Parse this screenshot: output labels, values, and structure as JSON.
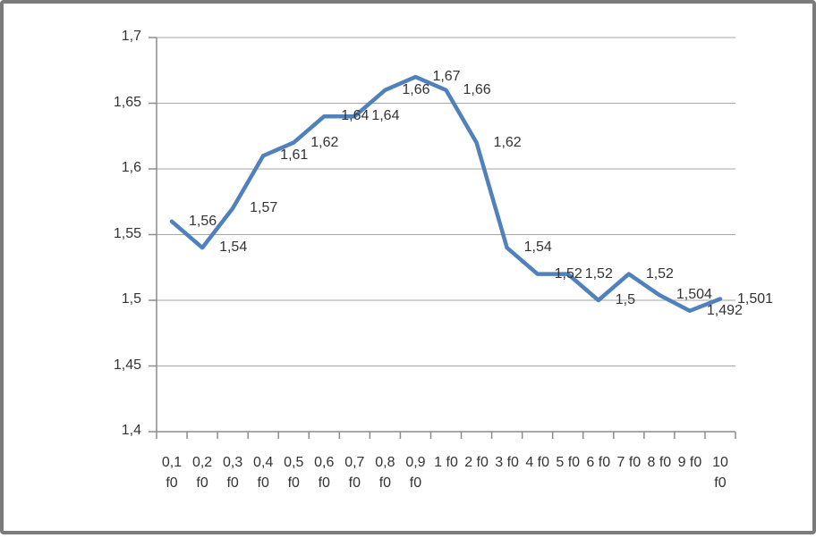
{
  "window": {
    "background": "#ffffff",
    "border_color": "#7b7b7b"
  },
  "chart_data": {
    "type": "line",
    "title": "",
    "xlabel": "",
    "ylabel": "",
    "legend": "none",
    "grid": true,
    "decimal_separator": ",",
    "categories": [
      "0,1 f0",
      "0,2 f0",
      "0,3 f0",
      "0,4 f0",
      "0,5 f0",
      "0,6 f0",
      "0,7 f0",
      "0,8 f0",
      "0,9 f0",
      "1 f0",
      "2 f0",
      "3 f0",
      "4 f0",
      "5 f0",
      "6 f0",
      "7 f0",
      "8 f0",
      "9 f0",
      "10 f0"
    ],
    "values": [
      1.56,
      1.54,
      1.57,
      1.61,
      1.62,
      1.64,
      1.64,
      1.66,
      1.67,
      1.66,
      1.62,
      1.54,
      1.52,
      1.52,
      1.5,
      1.52,
      1.504,
      1.492,
      1.501
    ],
    "data_labels": [
      "1,56",
      "1,54",
      "1,57",
      "1,61",
      "1,62",
      "1,64",
      "1,64",
      "1,66",
      "1,67",
      "1,66",
      "1,62",
      "1,54",
      "1,52",
      "1,52",
      "1,5",
      "1,52",
      "1,504",
      "1,492",
      "1,501"
    ],
    "ylim": [
      1.4,
      1.7
    ],
    "y_ticks": [
      {
        "value": 1.7,
        "label": "1,7"
      },
      {
        "value": 1.65,
        "label": "1,65"
      },
      {
        "value": 1.6,
        "label": "1,6"
      },
      {
        "value": 1.55,
        "label": "1,55"
      },
      {
        "value": 1.5,
        "label": "1,5"
      },
      {
        "value": 1.45,
        "label": "1,45"
      },
      {
        "value": 1.4,
        "label": "1,4"
      }
    ],
    "colors": {
      "line": "#4F81BD",
      "gridline": "#A6A6A6",
      "axis": "#8C8C8C",
      "text": "#333333"
    }
  }
}
